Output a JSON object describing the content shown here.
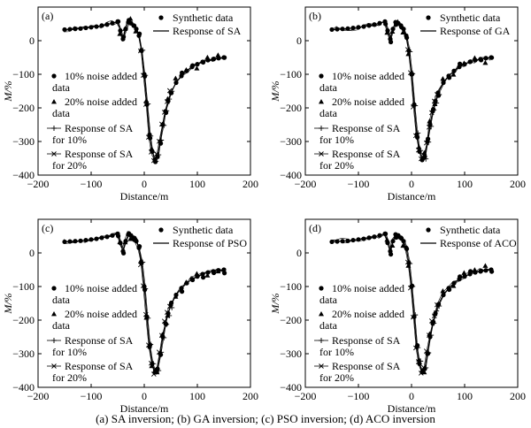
{
  "caption": "(a) SA inversion; (b) GA inversion; (c) PSO inversion; (d) ACO inversion",
  "chart_data": [
    {
      "type": "line",
      "panel_label": "(a)",
      "xlabel": "Distance/m",
      "ylabel": "M/%",
      "xlim": [
        -200,
        200
      ],
      "ylim": [
        -400,
        100
      ],
      "xticks": [
        -200,
        -100,
        0,
        100,
        200
      ],
      "yticks": [
        -400,
        -300,
        -200,
        -100,
        0
      ],
      "legend_top": [
        "Synthetic data",
        "Response of SA"
      ],
      "legend_noise": [
        "10% noise added data",
        "20% noise added data",
        "Response of SA for 10%",
        "Response of SA for 20%"
      ],
      "response_name": "Response of SA",
      "series": [
        {
          "name": "Synthetic data",
          "x": [
            -150,
            -140,
            -130,
            -120,
            -110,
            -100,
            -90,
            -80,
            -70,
            -60,
            -50,
            -45,
            -40,
            -35,
            -30,
            -25,
            -20,
            -15,
            -10,
            -5,
            0,
            5,
            10,
            15,
            20,
            25,
            30,
            35,
            40,
            45,
            50,
            60,
            70,
            80,
            90,
            100,
            110,
            120,
            130,
            140,
            150
          ],
          "y": [
            33,
            34,
            35,
            36,
            38,
            40,
            42,
            45,
            48,
            52,
            57,
            30,
            5,
            35,
            55,
            52,
            45,
            35,
            15,
            -30,
            -100,
            -190,
            -280,
            -330,
            -355,
            -345,
            -300,
            -250,
            -210,
            -180,
            -155,
            -125,
            -105,
            -90,
            -78,
            -70,
            -63,
            -58,
            -55,
            -52,
            -50
          ]
        },
        {
          "name": "Response of SA",
          "x": [
            -150,
            -140,
            -130,
            -120,
            -110,
            -100,
            -90,
            -80,
            -70,
            -60,
            -50,
            -45,
            -40,
            -35,
            -30,
            -25,
            -20,
            -15,
            -10,
            -5,
            0,
            5,
            10,
            15,
            20,
            25,
            30,
            35,
            40,
            45,
            50,
            60,
            70,
            80,
            90,
            100,
            110,
            120,
            130,
            140,
            150
          ],
          "y": [
            33,
            34,
            35,
            36,
            38,
            40,
            42,
            45,
            48,
            52,
            57,
            30,
            5,
            35,
            55,
            52,
            45,
            35,
            15,
            -30,
            -100,
            -190,
            -280,
            -330,
            -355,
            -345,
            -300,
            -250,
            -210,
            -180,
            -155,
            -125,
            -105,
            -90,
            -78,
            -70,
            -63,
            -58,
            -55,
            -52,
            -50
          ]
        }
      ]
    },
    {
      "type": "line",
      "panel_label": "(b)",
      "xlabel": "Distance/m",
      "ylabel": "M/%",
      "xlim": [
        -200,
        200
      ],
      "ylim": [
        -400,
        100
      ],
      "xticks": [
        -200,
        -100,
        0,
        100,
        200
      ],
      "yticks": [
        -400,
        -300,
        -200,
        -100,
        0
      ],
      "legend_top": [
        "Synthetic data",
        "Response of GA"
      ],
      "legend_noise": [
        "10% noise added data",
        "20% noise added data",
        "Response of SA for 10%",
        "Response of SA for 20%"
      ],
      "response_name": "Response of GA"
    },
    {
      "type": "line",
      "panel_label": "(c)",
      "xlabel": "Distance/m",
      "ylabel": "M/%",
      "xlim": [
        -200,
        200
      ],
      "ylim": [
        -400,
        100
      ],
      "xticks": [
        -200,
        -100,
        0,
        100,
        200
      ],
      "yticks": [
        -400,
        -300,
        -200,
        -100,
        0
      ],
      "legend_top": [
        "Synthetic data",
        "Response of PSO"
      ],
      "legend_noise": [
        "10% noise added data",
        "20% noise added data",
        "Response of SA for 10%",
        "Response of SA for 20%"
      ],
      "response_name": "Response of PSO"
    },
    {
      "type": "line",
      "panel_label": "(d)",
      "xlabel": "Distance/m",
      "ylabel": "M/%",
      "xlim": [
        -200,
        200
      ],
      "ylim": [
        -400,
        100
      ],
      "xticks": [
        -200,
        -100,
        0,
        100,
        200
      ],
      "yticks": [
        -400,
        -300,
        -200,
        -100,
        0
      ],
      "legend_top": [
        "Synthetic data",
        "Response of ACO"
      ],
      "legend_noise": [
        "10% noise added data",
        "20% noise added data",
        "Response of SA for 10%",
        "Response of SA for 20%"
      ],
      "response_name": "Response of ACO"
    }
  ]
}
